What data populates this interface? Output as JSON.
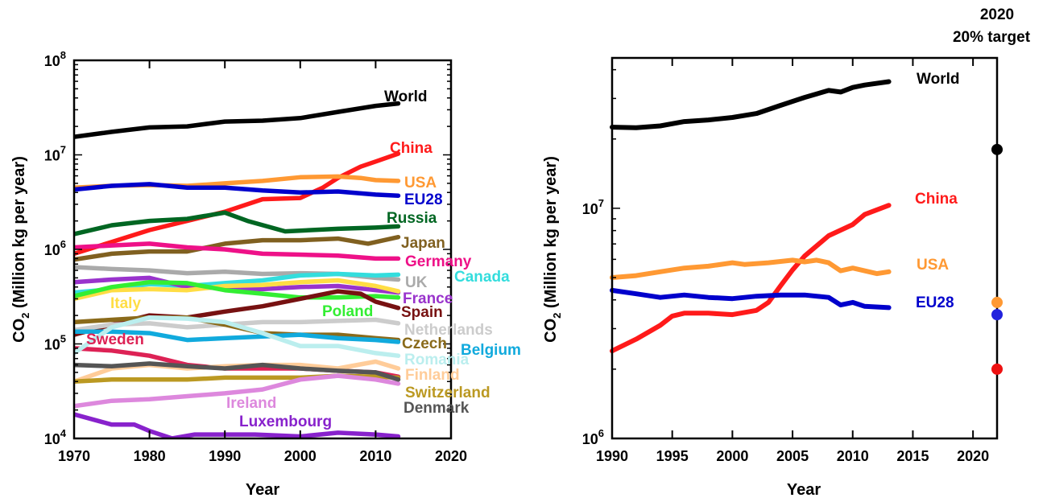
{
  "chart_data": [
    {
      "type": "line",
      "xlabel": "Year",
      "ylabel": "CO2 (Million kg per year)",
      "ylabel_sub": "2",
      "ylabel_main": "CO",
      "ylabel_rest": " (Million kg per year)",
      "yscale": "log",
      "xlim": [
        1970,
        2020
      ],
      "ylim": [
        10000,
        100000000
      ],
      "xticks": [
        "1970",
        "1980",
        "1990",
        "2000",
        "2010",
        "2020"
      ],
      "yticks": [
        {
          "base": "10",
          "exp": "4"
        },
        {
          "base": "10",
          "exp": "5"
        },
        {
          "base": "10",
          "exp": "6"
        },
        {
          "base": "10",
          "exp": "7"
        },
        {
          "base": "10",
          "exp": "8"
        }
      ],
      "series": [
        {
          "name": "World",
          "color": "#000000",
          "x": [
            1970,
            1975,
            1980,
            1985,
            1990,
            1995,
            2000,
            2005,
            2010,
            2013
          ],
          "values": [
            15500000,
            17500000,
            19500000,
            20000000,
            22500000,
            23000000,
            24500000,
            28500000,
            33000000,
            35000000
          ]
        },
        {
          "name": "China",
          "color": "#ff1a1a",
          "x": [
            1970,
            1975,
            1980,
            1985,
            1990,
            1995,
            2000,
            2003,
            2005,
            2008,
            2010,
            2013
          ],
          "values": [
            900000,
            1200000,
            1600000,
            2000000,
            2500000,
            3400000,
            3500000,
            4500000,
            5700000,
            7500000,
            8500000,
            10300000
          ]
        },
        {
          "name": "USA",
          "color": "#ff9933",
          "x": [
            1970,
            1975,
            1980,
            1985,
            1990,
            1995,
            2000,
            2005,
            2008,
            2010,
            2013
          ],
          "values": [
            4500000,
            4700000,
            4800000,
            4700000,
            5000000,
            5300000,
            5800000,
            5900000,
            5700000,
            5400000,
            5300000
          ]
        },
        {
          "name": "EU28",
          "color": "#0000cc",
          "x": [
            1970,
            1975,
            1980,
            1985,
            1990,
            1995,
            2000,
            2005,
            2010,
            2013
          ],
          "values": [
            4300000,
            4700000,
            4900000,
            4500000,
            4500000,
            4200000,
            4000000,
            4100000,
            3800000,
            3700000
          ]
        },
        {
          "name": "Russia",
          "color": "#006622",
          "x": [
            1970,
            1975,
            1980,
            1985,
            1990,
            1993,
            1998,
            2005,
            2010,
            2013
          ],
          "values": [
            1450000,
            1800000,
            2000000,
            2100000,
            2450000,
            2000000,
            1550000,
            1650000,
            1700000,
            1750000
          ]
        },
        {
          "name": "Japan",
          "color": "#806020",
          "x": [
            1970,
            1975,
            1980,
            1985,
            1990,
            1995,
            2000,
            2005,
            2009,
            2013
          ],
          "values": [
            780000,
            900000,
            950000,
            950000,
            1150000,
            1250000,
            1250000,
            1300000,
            1150000,
            1350000
          ]
        },
        {
          "name": "Germany",
          "color": "#ee1188",
          "x": [
            1970,
            1975,
            1980,
            1985,
            1990,
            1995,
            2000,
            2005,
            2010,
            2013
          ],
          "values": [
            1050000,
            1100000,
            1150000,
            1050000,
            1000000,
            900000,
            880000,
            860000,
            800000,
            800000
          ]
        },
        {
          "name": "UK",
          "color": "#aaaaaa",
          "x": [
            1970,
            1975,
            1980,
            1985,
            1990,
            1995,
            2000,
            2005,
            2010,
            2013
          ],
          "values": [
            650000,
            620000,
            600000,
            560000,
            580000,
            550000,
            560000,
            550000,
            500000,
            480000
          ]
        },
        {
          "name": "Canada",
          "color": "#33dddd",
          "x": [
            1970,
            1975,
            1980,
            1985,
            1990,
            1995,
            2000,
            2005,
            2010,
            2013
          ],
          "values": [
            350000,
            380000,
            430000,
            410000,
            440000,
            470000,
            530000,
            550000,
            530000,
            540000
          ]
        },
        {
          "name": "France",
          "color": "#9933cc",
          "x": [
            1970,
            1975,
            1980,
            1985,
            1990,
            1995,
            2000,
            2005,
            2010,
            2013
          ],
          "values": [
            450000,
            480000,
            500000,
            400000,
            390000,
            380000,
            400000,
            410000,
            370000,
            350000
          ]
        },
        {
          "name": "Italy",
          "color": "#ffdd44",
          "x": [
            1970,
            1975,
            1980,
            1985,
            1990,
            1995,
            2000,
            2005,
            2010,
            2013
          ],
          "values": [
            300000,
            370000,
            380000,
            370000,
            410000,
            420000,
            450000,
            470000,
            410000,
            360000
          ]
        },
        {
          "name": "Poland",
          "color": "#33ee33",
          "x": [
            1970,
            1975,
            1980,
            1985,
            1990,
            1995,
            2000,
            2005,
            2010,
            2013
          ],
          "values": [
            320000,
            400000,
            450000,
            440000,
            370000,
            340000,
            310000,
            310000,
            320000,
            310000
          ]
        },
        {
          "name": "Spain",
          "color": "#771111",
          "x": [
            1970,
            1975,
            1980,
            1985,
            1990,
            1995,
            2000,
            2005,
            2008,
            2010,
            2013
          ],
          "values": [
            125000,
            160000,
            200000,
            190000,
            220000,
            250000,
            300000,
            360000,
            340000,
            280000,
            240000
          ]
        },
        {
          "name": "Netherlands",
          "color": "#cccccc",
          "x": [
            1970,
            1975,
            1980,
            1985,
            1990,
            1995,
            2000,
            2005,
            2010,
            2013
          ],
          "values": [
            140000,
            160000,
            165000,
            150000,
            160000,
            170000,
            170000,
            175000,
            180000,
            165000
          ]
        },
        {
          "name": "Czech",
          "color": "#8a6a1a",
          "x": [
            1970,
            1975,
            1980,
            1985,
            1990,
            1995,
            2000,
            2005,
            2010,
            2013
          ],
          "values": [
            170000,
            180000,
            190000,
            190000,
            160000,
            130000,
            125000,
            125000,
            115000,
            110000
          ]
        },
        {
          "name": "Belgium",
          "color": "#11aadd",
          "x": [
            1970,
            1975,
            1980,
            1985,
            1990,
            1995,
            2000,
            2005,
            2010,
            2013
          ],
          "values": [
            135000,
            135000,
            130000,
            110000,
            115000,
            120000,
            125000,
            115000,
            110000,
            105000
          ]
        },
        {
          "name": "Sweden",
          "color": "#dd2255",
          "x": [
            1970,
            1975,
            1980,
            1985,
            1990,
            1995,
            2000,
            2005,
            2010,
            2013
          ],
          "values": [
            90000,
            85000,
            75000,
            60000,
            55000,
            55000,
            55000,
            52000,
            50000,
            45000
          ]
        },
        {
          "name": "Romania",
          "color": "#bbeeee",
          "x": [
            1970,
            1975,
            1980,
            1985,
            1990,
            1995,
            2000,
            2005,
            2010,
            2013
          ],
          "values": [
            80000,
            150000,
            190000,
            185000,
            170000,
            130000,
            95000,
            95000,
            80000,
            75000
          ]
        },
        {
          "name": "Finland",
          "color": "#ffcc99",
          "x": [
            1970,
            1975,
            1980,
            1985,
            1990,
            1995,
            2000,
            2005,
            2010,
            2013
          ],
          "values": [
            40000,
            55000,
            60000,
            55000,
            58000,
            60000,
            60000,
            55000,
            65000,
            55000
          ]
        },
        {
          "name": "Switzerland",
          "color": "#bb9922",
          "x": [
            1970,
            1975,
            1980,
            1985,
            1990,
            1995,
            2000,
            2005,
            2010,
            2013
          ],
          "values": [
            40000,
            42000,
            42000,
            42000,
            44000,
            44000,
            44000,
            46000,
            45000,
            44000
          ]
        },
        {
          "name": "Ireland",
          "color": "#dd88dd",
          "x": [
            1970,
            1975,
            1980,
            1985,
            1990,
            1995,
            2000,
            2005,
            2010,
            2013
          ],
          "values": [
            22000,
            25000,
            26000,
            28000,
            30000,
            33000,
            42000,
            46000,
            42000,
            38000
          ]
        },
        {
          "name": "Denmark",
          "color": "#555555",
          "x": [
            1970,
            1975,
            1980,
            1985,
            1990,
            1995,
            2000,
            2005,
            2010,
            2013
          ],
          "values": [
            60000,
            58000,
            62000,
            58000,
            55000,
            60000,
            55000,
            52000,
            50000,
            42000
          ]
        },
        {
          "name": "Luxembourg",
          "color": "#8822cc",
          "x": [
            1970,
            1975,
            1978,
            1980,
            1983,
            1986,
            1990,
            1994,
            2000,
            2005,
            2010,
            2013
          ],
          "values": [
            18000,
            14000,
            14000,
            12000,
            10000,
            11000,
            11000,
            11000,
            10500,
            11500,
            11000,
            10500
          ]
        }
      ]
    },
    {
      "type": "line",
      "xlabel": "Year",
      "ylabel_main": "CO",
      "ylabel_sub": "2",
      "ylabel_rest": " (Million kg per year)",
      "yscale": "log",
      "xlim": [
        1990,
        2022
      ],
      "ylim": [
        1000000,
        45000000
      ],
      "xticks": [
        "1990",
        "1995",
        "2000",
        "2005",
        "2010",
        "2015",
        "2020"
      ],
      "yticks": [
        {
          "base": "10",
          "exp": "6"
        },
        {
          "base": "10",
          "exp": "7"
        }
      ],
      "annotation": {
        "line1": "2020",
        "line2": "20% target"
      },
      "series": [
        {
          "name": "World",
          "color": "#000000",
          "x": [
            1990,
            1992,
            1994,
            1996,
            1998,
            2000,
            2002,
            2004,
            2006,
            2008,
            2009,
            2010,
            2011,
            2013
          ],
          "values": [
            22500000,
            22400000,
            22800000,
            23800000,
            24200000,
            24800000,
            25800000,
            28000000,
            30300000,
            32500000,
            32000000,
            33500000,
            34300000,
            35500000
          ]
        },
        {
          "name": "China",
          "color": "#ff1a1a",
          "x": [
            1990,
            1992,
            1994,
            1995,
            1996,
            1998,
            2000,
            2002,
            2003,
            2004,
            2005,
            2006,
            2008,
            2010,
            2011,
            2013
          ],
          "values": [
            2400000,
            2700000,
            3100000,
            3400000,
            3500000,
            3500000,
            3450000,
            3600000,
            3900000,
            4600000,
            5400000,
            6200000,
            7600000,
            8500000,
            9400000,
            10300000
          ]
        },
        {
          "name": "USA",
          "color": "#ff9933",
          "x": [
            1990,
            1992,
            1994,
            1996,
            1998,
            2000,
            2001,
            2003,
            2005,
            2006,
            2007,
            2008,
            2009,
            2010,
            2012,
            2013
          ],
          "values": [
            5000000,
            5100000,
            5300000,
            5500000,
            5600000,
            5800000,
            5700000,
            5800000,
            5950000,
            5850000,
            5950000,
            5800000,
            5350000,
            5500000,
            5200000,
            5300000
          ]
        },
        {
          "name": "EU28",
          "color": "#0000cc",
          "x": [
            1990,
            1992,
            1994,
            1996,
            1998,
            2000,
            2002,
            2004,
            2006,
            2008,
            2009,
            2010,
            2011,
            2013
          ],
          "values": [
            4400000,
            4250000,
            4100000,
            4200000,
            4100000,
            4050000,
            4150000,
            4200000,
            4200000,
            4100000,
            3800000,
            3900000,
            3750000,
            3700000
          ]
        }
      ],
      "targets": [
        {
          "name": "World",
          "color": "#000000",
          "value": 18000000
        },
        {
          "name": "USA",
          "color": "#ff9933",
          "value": 3900000
        },
        {
          "name": "EU28",
          "color": "#2222dd",
          "value": 3450000
        },
        {
          "name": "China",
          "color": "#ee1111",
          "value": 2000000
        }
      ]
    }
  ]
}
